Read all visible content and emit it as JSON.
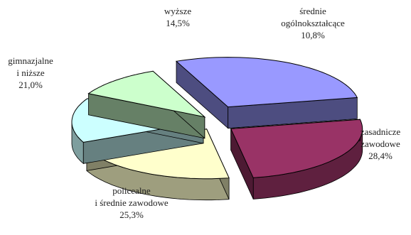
{
  "chart_data": {
    "type": "pie",
    "style": "3d-exploded",
    "slices": [
      {
        "label_lines": [
          "średnie",
          "ogólnokształcące"
        ],
        "value_label": "10,8%",
        "value": 10.8,
        "color": "#ccffcc"
      },
      {
        "label_lines": [
          "zasadnicze",
          "zawodowe"
        ],
        "value_label": "28,4%",
        "value": 28.4,
        "color": "#9999ff"
      },
      {
        "label_lines": [
          "policealne",
          "i średnie zawodowe"
        ],
        "value_label": "25,3%",
        "value": 25.3,
        "color": "#993366"
      },
      {
        "label_lines": [
          "gimnazjalne",
          "i niższe"
        ],
        "value_label": "21,0%",
        "value": 21.0,
        "color": "#ffffcc"
      },
      {
        "label_lines": [
          "wyższe"
        ],
        "value_label": "14,5%",
        "value": 14.5,
        "color": "#ccffff"
      }
    ]
  }
}
